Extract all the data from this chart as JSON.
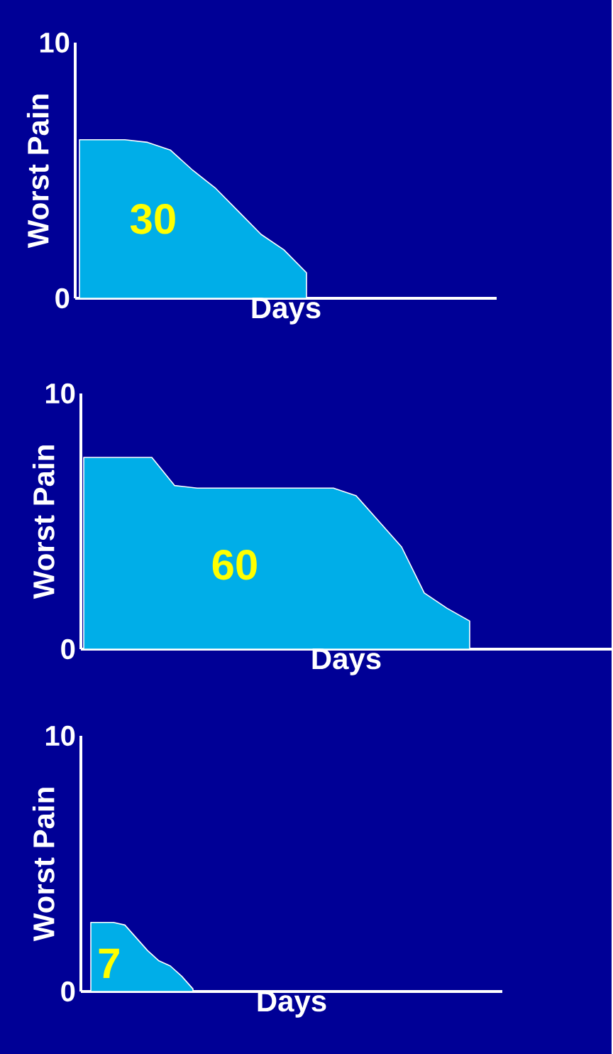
{
  "chart_data": [
    {
      "type": "area",
      "xlabel": "Days",
      "ylabel": "Worst Pain",
      "ylim": [
        0,
        10
      ],
      "yticks": [
        0,
        10
      ],
      "tick_labels": "y",
      "color": "#00aee8",
      "annotations": [
        "30"
      ],
      "categories": [
        null,
        null,
        null,
        null,
        null,
        null,
        null,
        null,
        null,
        null,
        null,
        null,
        null,
        null,
        null,
        null,
        null,
        null,
        null
      ],
      "values": [
        6.2,
        6.2,
        6.2,
        6.1,
        5.8,
        5.0,
        4.3,
        3.4,
        2.5,
        1.9,
        1.0,
        null,
        null,
        null,
        null,
        null,
        null,
        null,
        null
      ]
    },
    {
      "type": "area",
      "xlabel": "Days",
      "ylabel": "Worst Pain",
      "ylim": [
        0,
        10
      ],
      "yticks": [
        0,
        10
      ],
      "tick_labels": "y",
      "color": "#00aee8",
      "annotations": [
        "60"
      ],
      "categories": [
        null,
        null,
        null,
        null,
        null,
        null,
        null,
        null,
        null,
        null,
        null,
        null,
        null,
        null,
        null,
        null,
        null,
        null,
        null,
        null,
        null,
        null,
        null,
        null
      ],
      "values": [
        7.5,
        7.5,
        7.5,
        7.5,
        6.4,
        6.3,
        6.3,
        6.3,
        6.3,
        6.3,
        6.3,
        6.3,
        6.0,
        5.0,
        4.0,
        2.2,
        1.6,
        1.1,
        null,
        null,
        null,
        null,
        null,
        null
      ]
    },
    {
      "type": "area",
      "xlabel": "Days",
      "ylabel": "Worst Pain",
      "ylim": [
        0,
        10
      ],
      "yticks": [
        0,
        10
      ],
      "tick_labels": "y",
      "color": "#00aee8",
      "annotations": [
        "7"
      ],
      "categories": [
        null,
        null,
        null,
        null,
        null,
        null,
        null,
        null,
        null,
        null,
        null,
        null,
        null,
        null,
        null,
        null,
        null,
        null,
        null,
        null,
        null,
        null,
        null,
        null,
        null,
        null,
        null,
        null,
        null,
        null,
        null,
        null,
        null,
        null,
        null,
        null,
        null
      ],
      "values": [
        2.7,
        2.7,
        2.7,
        2.6,
        2.1,
        1.6,
        1.2,
        1.0,
        0.6,
        0.1,
        null,
        null,
        null,
        null,
        null,
        null,
        null,
        null,
        null,
        null,
        null,
        null,
        null,
        null,
        null,
        null,
        null,
        null,
        null,
        null,
        null,
        null,
        null,
        null,
        null,
        null,
        null
      ]
    }
  ]
}
